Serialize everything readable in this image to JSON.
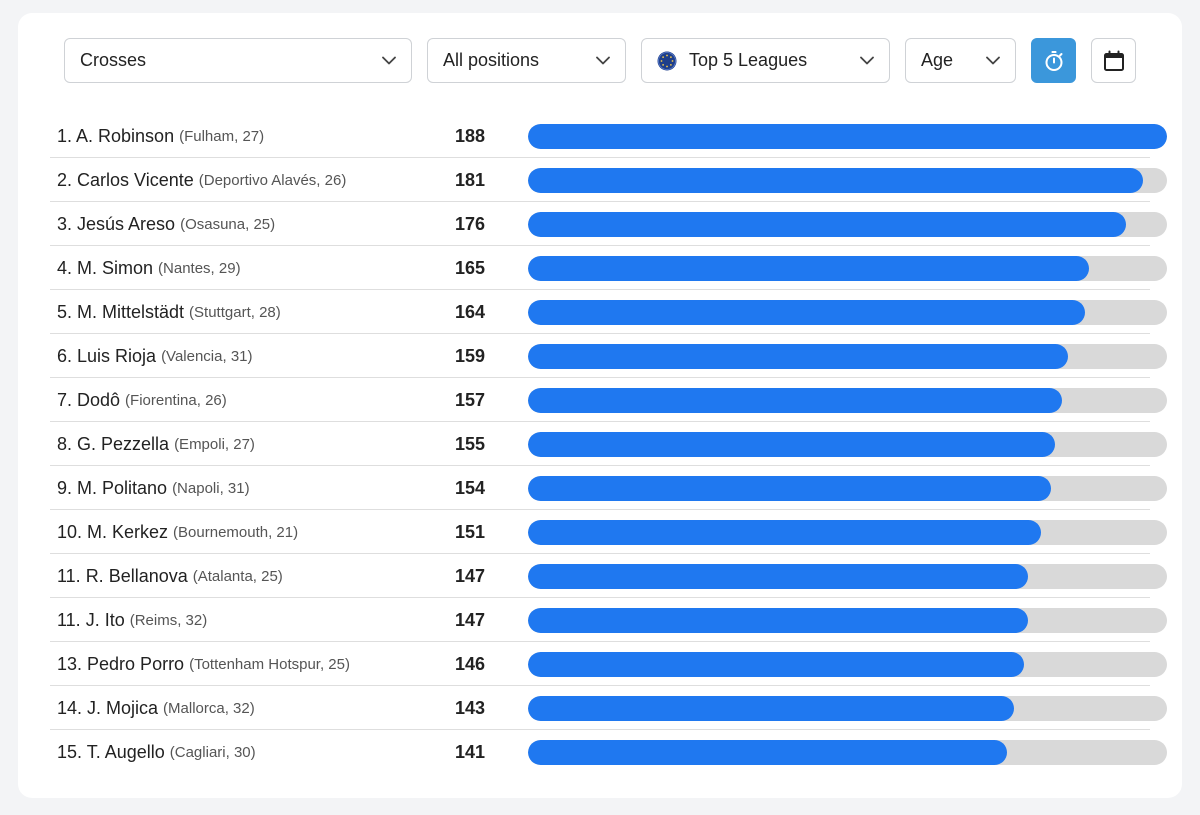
{
  "filters": {
    "stat": "Crosses",
    "position": "All positions",
    "league": "Top 5 Leagues",
    "age": "Age"
  },
  "icons": {
    "stopwatch": "stopwatch-icon",
    "calendar": "calendar-icon",
    "league": "globe-icon",
    "chevron": "chevron-down-icon"
  },
  "colors": {
    "bar_fill": "#1f78f0",
    "bar_track": "#d9d9d9",
    "active_button": "#3b97db"
  },
  "max_value": 188,
  "rows": [
    {
      "name": "1. A. Robinson",
      "meta": "(Fulham, 27)",
      "value": 188
    },
    {
      "name": "2. Carlos Vicente",
      "meta": "(Deportivo Alavés, 26)",
      "value": 181
    },
    {
      "name": "3. Jesús Areso",
      "meta": "(Osasuna, 25)",
      "value": 176
    },
    {
      "name": "4. M. Simon",
      "meta": "(Nantes, 29)",
      "value": 165
    },
    {
      "name": "5. M. Mittelstädt",
      "meta": "(Stuttgart, 28)",
      "value": 164
    },
    {
      "name": "6. Luis Rioja",
      "meta": "(Valencia, 31)",
      "value": 159
    },
    {
      "name": "7. Dodô",
      "meta": "(Fiorentina, 26)",
      "value": 157
    },
    {
      "name": "8. G. Pezzella",
      "meta": "(Empoli, 27)",
      "value": 155
    },
    {
      "name": "9. M. Politano",
      "meta": "(Napoli, 31)",
      "value": 154
    },
    {
      "name": "10. M. Kerkez",
      "meta": "(Bournemouth, 21)",
      "value": 151
    },
    {
      "name": "11. R. Bellanova",
      "meta": "(Atalanta, 25)",
      "value": 147
    },
    {
      "name": "11. J. Ito",
      "meta": "(Reims, 32)",
      "value": 147
    },
    {
      "name": "13. Pedro Porro",
      "meta": "(Tottenham Hotspur, 25)",
      "value": 146
    },
    {
      "name": "14. J. Mojica",
      "meta": "(Mallorca, 32)",
      "value": 143
    },
    {
      "name": "15. T. Augello",
      "meta": "(Cagliari, 30)",
      "value": 141
    }
  ]
}
